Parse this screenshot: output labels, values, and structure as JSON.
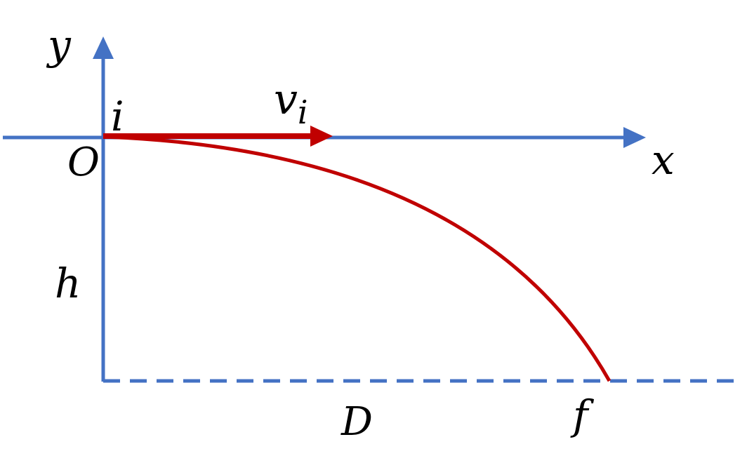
{
  "diagram": {
    "labels": {
      "y_axis": "y",
      "x_axis": "x",
      "origin": "O",
      "initial_point": "i",
      "velocity": "v",
      "velocity_subscript": "i",
      "height": "h",
      "distance": "D",
      "final_point": "f"
    },
    "colors": {
      "axes": "#4472C4",
      "trajectory": "#C00000",
      "velocity_vector": "#C00000",
      "text": "#000000"
    },
    "elements": {
      "x_axis": "arrow",
      "y_axis": "arrow",
      "ground_line": "dashed",
      "trajectory": "parabola",
      "velocity_vector": "arrow"
    }
  }
}
